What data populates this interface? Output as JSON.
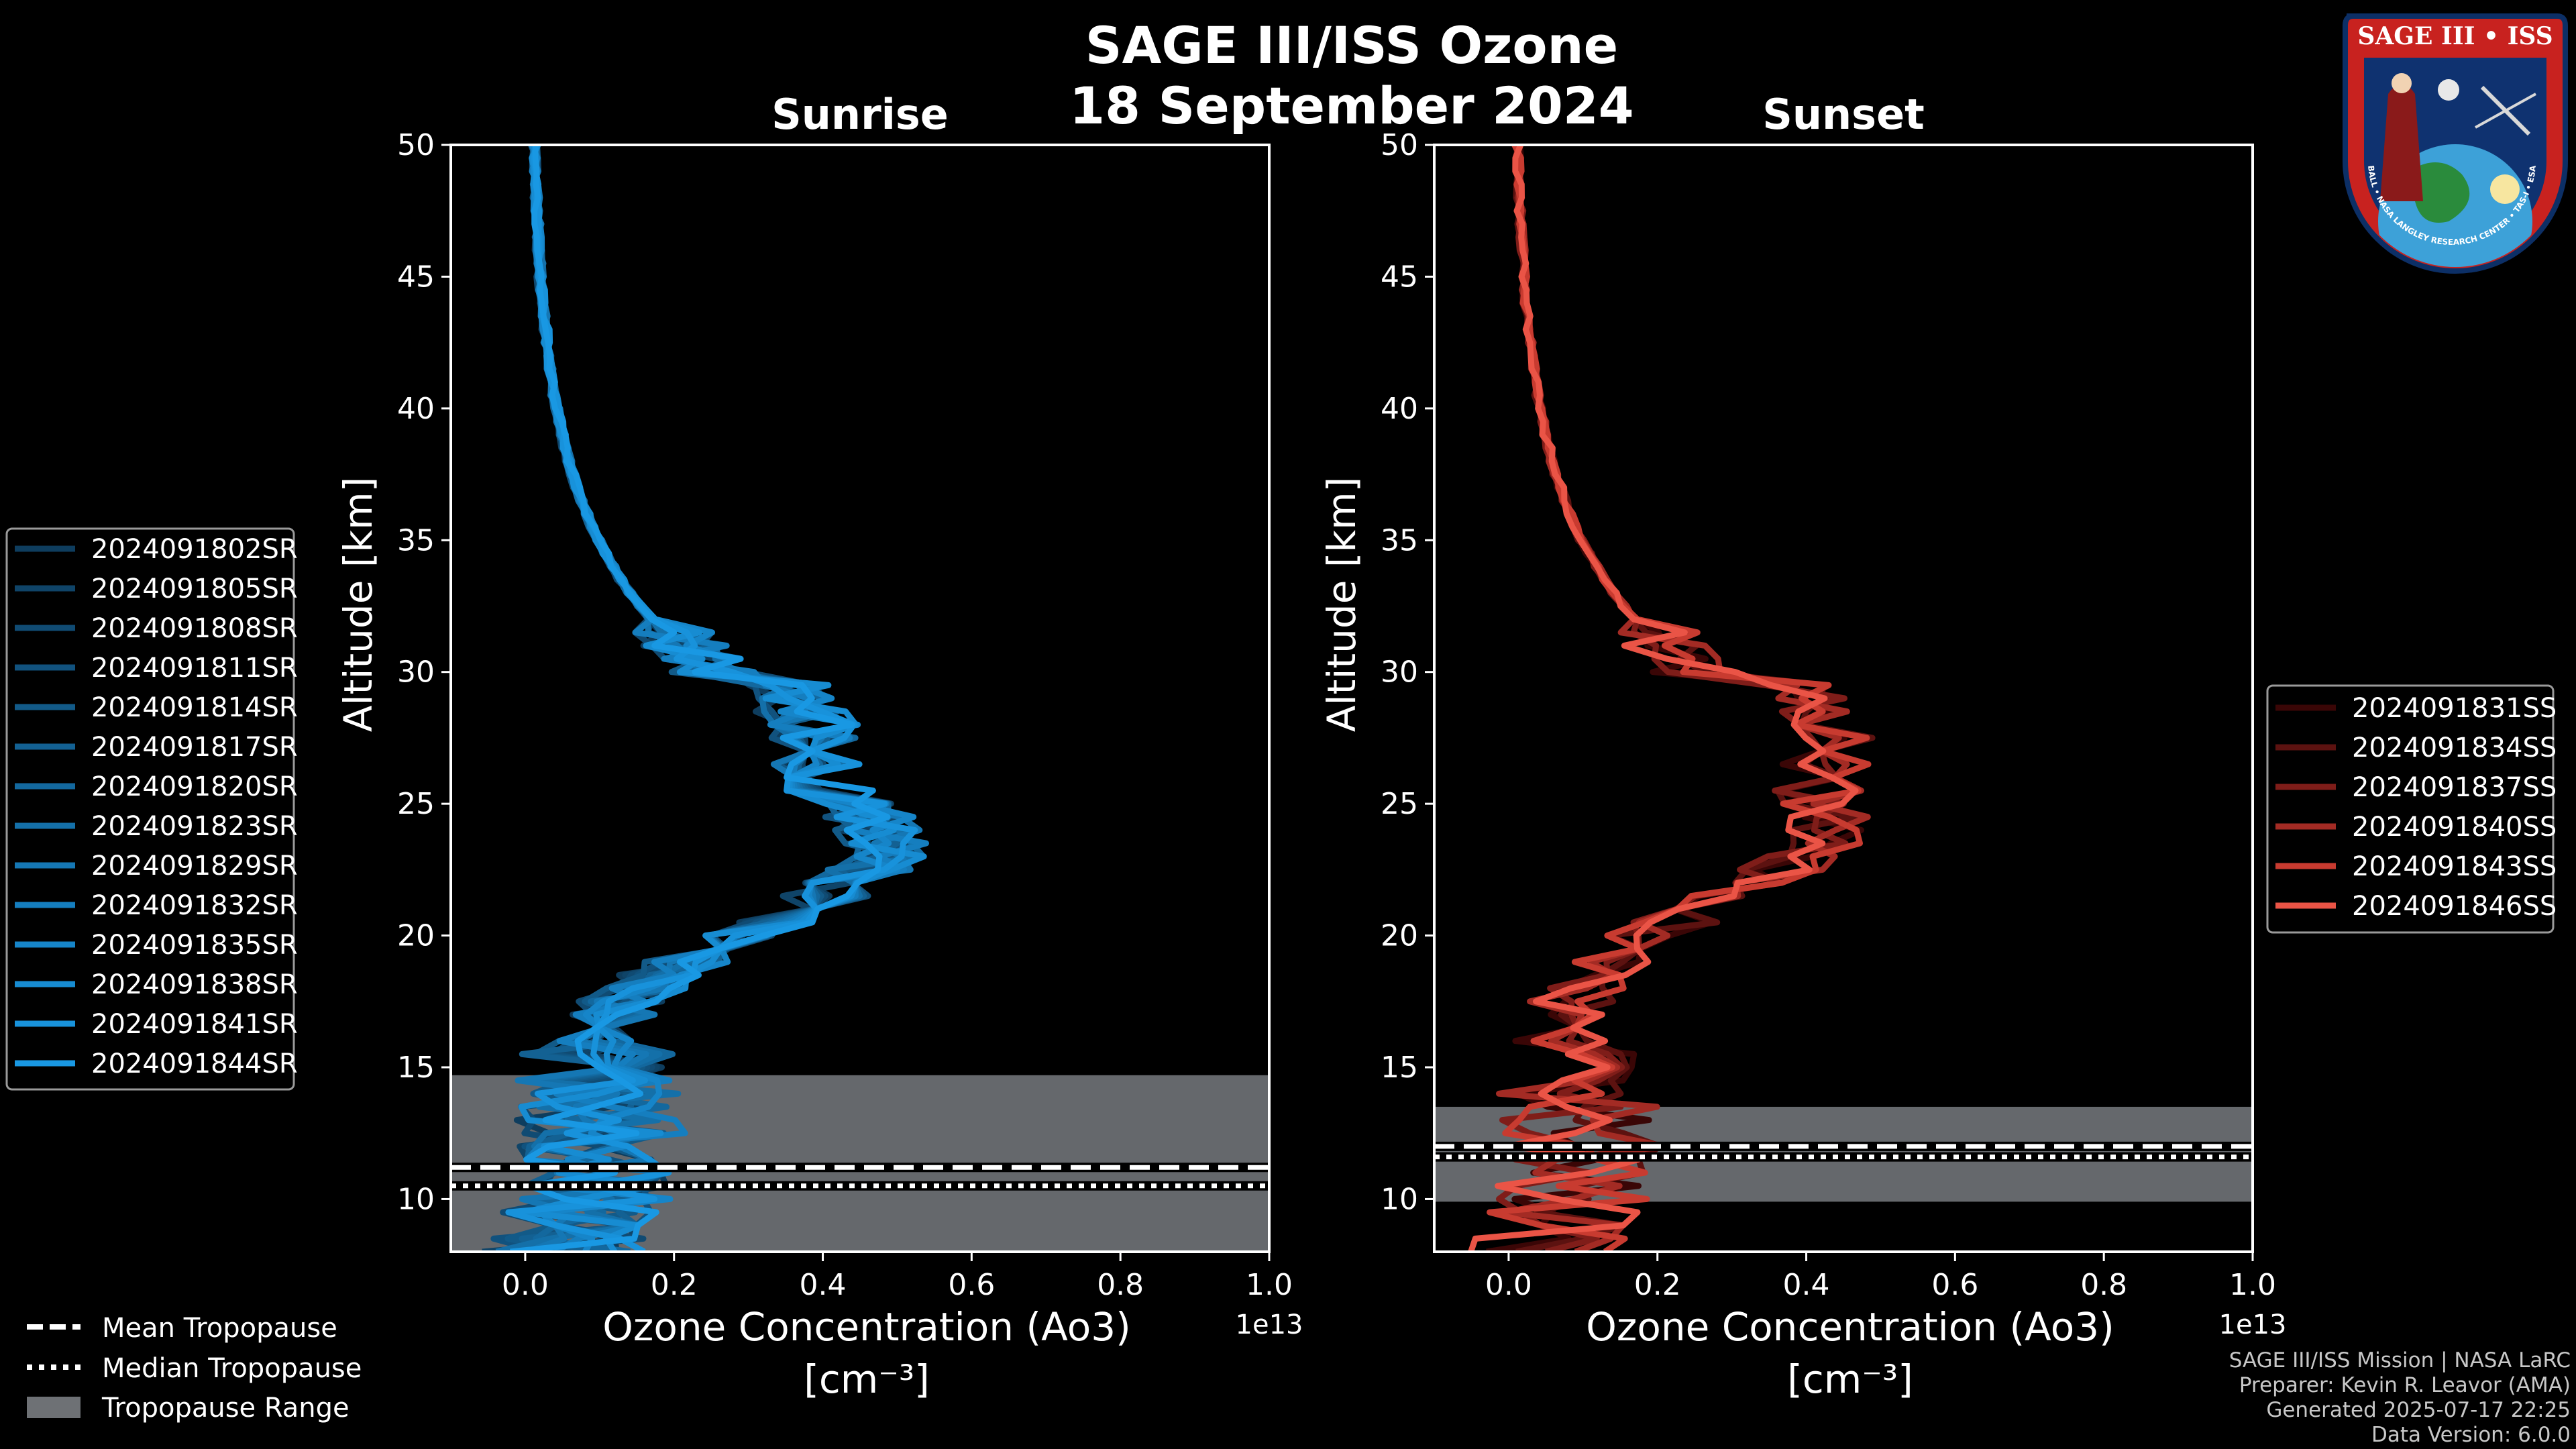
{
  "figure": {
    "title_line1": "SAGE III/ISS Ozone",
    "title_line2": "18 September 2024",
    "background": "#000000"
  },
  "credits": {
    "line1": "SAGE III/ISS Mission | NASA LaRC",
    "line2": "Preparer: Kevin R. Leavor (AMA)",
    "line3": "Generated 2025-07-17 22:25",
    "line4": "Data Version: 6.0.0"
  },
  "logo": {
    "title": "SAGE III • ISS",
    "ring_text": "BALL • NASA LANGLEY RESEARCH CENTER • TAS-I • ESA"
  },
  "tropopause_legend": {
    "mean": "Mean Tropopause",
    "median": "Median Tropopause",
    "range": "Tropopause Range",
    "range_color": "#6e7175"
  },
  "chart_data": [
    {
      "type": "line",
      "title": "Sunrise",
      "xlabel_line1": "Ozone Concentration (Ao3)",
      "xlabel_line2": "[cm⁻³]",
      "ylabel": "Altitude [km]",
      "x_offset_text": "1e13",
      "xlim": [
        -0.1,
        1.0
      ],
      "ylim": [
        8,
        50
      ],
      "xticks": [
        0.0,
        0.2,
        0.4,
        0.6,
        0.8,
        1.0
      ],
      "xtick_labels": [
        "0.0",
        "0.2",
        "0.4",
        "0.6",
        "0.8",
        "1.0"
      ],
      "yticks": [
        10,
        15,
        20,
        25,
        30,
        35,
        40,
        45,
        50
      ],
      "ytick_labels": [
        "10",
        "15",
        "20",
        "25",
        "30",
        "35",
        "40",
        "45",
        "50"
      ],
      "tropopause": {
        "range": [
          8.0,
          14.7
        ],
        "mean": 11.2,
        "median": 10.5
      },
      "series": [
        {
          "name": "2024091802SR",
          "color": "#0e3d5e"
        },
        {
          "name": "2024091805SR",
          "color": "#0f4468"
        },
        {
          "name": "2024091808SR",
          "color": "#104b73"
        },
        {
          "name": "2024091811SR",
          "color": "#11527e"
        },
        {
          "name": "2024091814SR",
          "color": "#125a88"
        },
        {
          "name": "2024091817SR",
          "color": "#136193"
        },
        {
          "name": "2024091820SR",
          "color": "#13689e"
        },
        {
          "name": "2024091823SR",
          "color": "#1470a9"
        },
        {
          "name": "2024091829SR",
          "color": "#1577b4"
        },
        {
          "name": "2024091832SR",
          "color": "#157ebf"
        },
        {
          "name": "2024091835SR",
          "color": "#1685c9"
        },
        {
          "name": "2024091838SR",
          "color": "#178cd2"
        },
        {
          "name": "2024091841SR",
          "color": "#1892db"
        },
        {
          "name": "2024091844SR",
          "color": "#1998e3"
        }
      ]
    },
    {
      "type": "line",
      "title": "Sunset",
      "xlabel_line1": "Ozone Concentration (Ao3)",
      "xlabel_line2": "[cm⁻³]",
      "ylabel": "Altitude [km]",
      "x_offset_text": "1e13",
      "xlim": [
        -0.1,
        1.0
      ],
      "ylim": [
        8,
        50
      ],
      "xticks": [
        0.0,
        0.2,
        0.4,
        0.6,
        0.8,
        1.0
      ],
      "xtick_labels": [
        "0.0",
        "0.2",
        "0.4",
        "0.6",
        "0.8",
        "1.0"
      ],
      "yticks": [
        10,
        15,
        20,
        25,
        30,
        35,
        40,
        45,
        50
      ],
      "ytick_labels": [
        "10",
        "15",
        "20",
        "25",
        "30",
        "35",
        "40",
        "45",
        "50"
      ],
      "tropopause": {
        "range": [
          9.9,
          13.5
        ],
        "mean": 12.0,
        "median": 11.6
      },
      "series": [
        {
          "name": "2024091831SS",
          "color": "#3a0606"
        },
        {
          "name": "2024091834SS",
          "color": "#5c1210"
        },
        {
          "name": "2024091837SS",
          "color": "#7f1d19"
        },
        {
          "name": "2024091840SS",
          "color": "#a32b24"
        },
        {
          "name": "2024091843SS",
          "color": "#c83b30"
        },
        {
          "name": "2024091846SS",
          "color": "#ea5446"
        }
      ]
    }
  ]
}
